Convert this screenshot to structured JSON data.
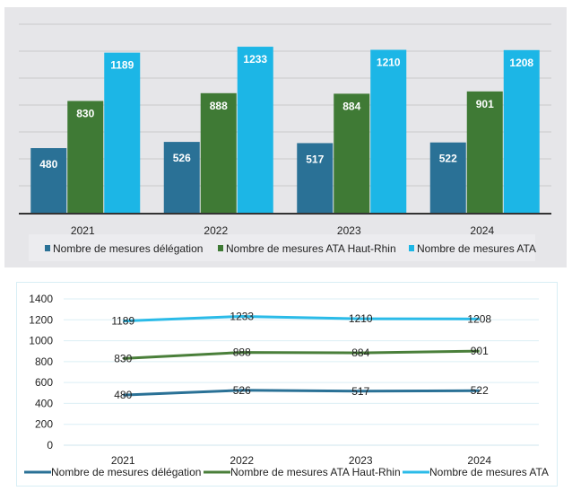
{
  "chart_data": [
    {
      "type": "bar",
      "categories": [
        "2021",
        "2022",
        "2023",
        "2024"
      ],
      "series": [
        {
          "name": "Nombre de mesures délégation",
          "color": "#2a7196",
          "values": [
            480,
            526,
            517,
            522
          ]
        },
        {
          "name": "Nombre de mesures ATA Haut-Rhin",
          "color": "#3f7a35",
          "values": [
            830,
            888,
            884,
            901
          ]
        },
        {
          "name": "Nombre de mesures ATA",
          "color": "#1cb6e6",
          "values": [
            1189,
            1233,
            1210,
            1208
          ]
        }
      ],
      "ylim": [
        0,
        1400
      ],
      "grid": true,
      "data_labels": true,
      "legend": "bottom"
    },
    {
      "type": "line",
      "categories": [
        "2021",
        "2022",
        "2023",
        "2024"
      ],
      "series": [
        {
          "name": "Nombre de mesures délégation",
          "color": "#2a7196",
          "values": [
            480,
            526,
            517,
            522
          ]
        },
        {
          "name": "Nombre de mesures ATA Haut-Rhin",
          "color": "#4a7f3a",
          "values": [
            830,
            888,
            884,
            901
          ]
        },
        {
          "name": "Nombre de mesures ATA",
          "color": "#2bbbe8",
          "values": [
            1189,
            1233,
            1210,
            1208
          ]
        }
      ],
      "yticks": [
        0,
        200,
        400,
        600,
        800,
        1000,
        1200,
        1400
      ],
      "ylim": [
        0,
        1400
      ],
      "grid": true,
      "data_labels": true,
      "legend": "bottom"
    }
  ]
}
